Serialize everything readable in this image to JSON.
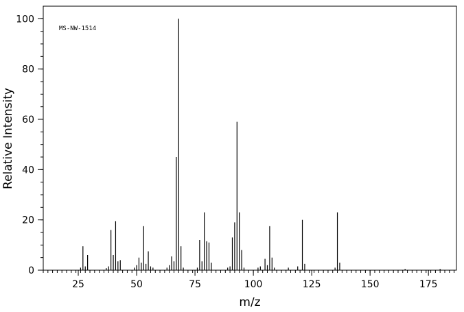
{
  "chart_data": {
    "type": "bar",
    "subtype": "mass-spectrum-stick",
    "annotation": "MS-NW-1514",
    "xlabel": "m/z",
    "ylabel": "Relative Intensity",
    "xlim": [
      10,
      187
    ],
    "ylim": [
      0,
      105
    ],
    "x_ticks": [
      25,
      50,
      75,
      100,
      125,
      150,
      175
    ],
    "y_ticks": [
      0,
      20,
      40,
      60,
      80,
      100
    ],
    "x_minor_step": 2,
    "y_minor_step": 5,
    "grid": false,
    "legend": "none",
    "color": "#000000",
    "peaks": [
      {
        "x": 26,
        "y": 1.0
      },
      {
        "x": 27,
        "y": 9.5
      },
      {
        "x": 28,
        "y": 1.5
      },
      {
        "x": 29,
        "y": 6.0
      },
      {
        "x": 37,
        "y": 0.8
      },
      {
        "x": 38,
        "y": 1.5
      },
      {
        "x": 39,
        "y": 16.0
      },
      {
        "x": 40,
        "y": 6.0
      },
      {
        "x": 41,
        "y": 19.5
      },
      {
        "x": 42,
        "y": 3.5
      },
      {
        "x": 43,
        "y": 4.0
      },
      {
        "x": 49,
        "y": 1.0
      },
      {
        "x": 50,
        "y": 2.0
      },
      {
        "x": 51,
        "y": 5.0
      },
      {
        "x": 52,
        "y": 3.0
      },
      {
        "x": 53,
        "y": 17.5
      },
      {
        "x": 54,
        "y": 2.5
      },
      {
        "x": 55,
        "y": 7.5
      },
      {
        "x": 56,
        "y": 1.5
      },
      {
        "x": 57,
        "y": 1.0
      },
      {
        "x": 63,
        "y": 1.0
      },
      {
        "x": 64,
        "y": 2.0
      },
      {
        "x": 65,
        "y": 5.5
      },
      {
        "x": 66,
        "y": 3.5
      },
      {
        "x": 67,
        "y": 45.0
      },
      {
        "x": 68,
        "y": 100.0
      },
      {
        "x": 69,
        "y": 9.5
      },
      {
        "x": 70,
        "y": 1.0
      },
      {
        "x": 76,
        "y": 1.0
      },
      {
        "x": 77,
        "y": 12.0
      },
      {
        "x": 78,
        "y": 3.5
      },
      {
        "x": 79,
        "y": 23.0
      },
      {
        "x": 80,
        "y": 11.5
      },
      {
        "x": 81,
        "y": 11.0
      },
      {
        "x": 82,
        "y": 3.0
      },
      {
        "x": 89,
        "y": 1.0
      },
      {
        "x": 90,
        "y": 1.5
      },
      {
        "x": 91,
        "y": 13.0
      },
      {
        "x": 92,
        "y": 19.0
      },
      {
        "x": 93,
        "y": 59.0
      },
      {
        "x": 94,
        "y": 23.0
      },
      {
        "x": 95,
        "y": 8.0
      },
      {
        "x": 96,
        "y": 1.0
      },
      {
        "x": 102,
        "y": 1.0
      },
      {
        "x": 103,
        "y": 1.5
      },
      {
        "x": 105,
        "y": 4.5
      },
      {
        "x": 106,
        "y": 2.0
      },
      {
        "x": 107,
        "y": 17.5
      },
      {
        "x": 108,
        "y": 5.0
      },
      {
        "x": 109,
        "y": 1.0
      },
      {
        "x": 115,
        "y": 1.0
      },
      {
        "x": 119,
        "y": 1.5
      },
      {
        "x": 121,
        "y": 20.0
      },
      {
        "x": 122,
        "y": 2.5
      },
      {
        "x": 135,
        "y": 1.0
      },
      {
        "x": 136,
        "y": 23.0
      },
      {
        "x": 137,
        "y": 3.0
      },
      {
        "x": 165,
        "y": 0.5
      },
      {
        "x": 180,
        "y": 0.5
      }
    ]
  }
}
